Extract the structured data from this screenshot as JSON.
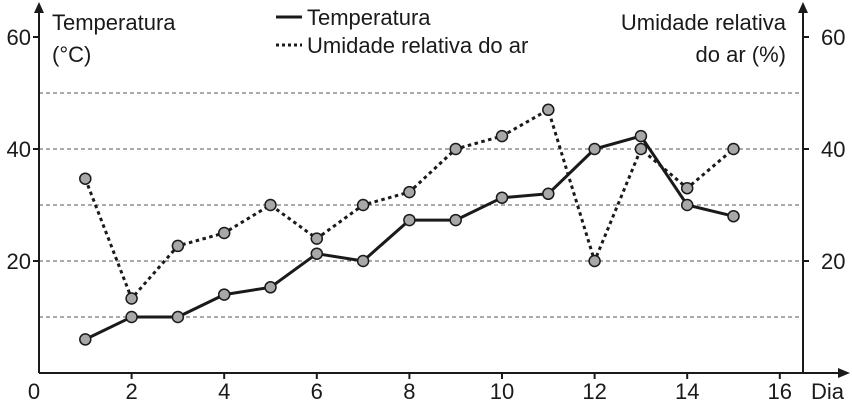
{
  "chart_data": {
    "type": "line",
    "x_label": "Dia",
    "left_axis_title": [
      "Temperatura",
      "(°C)"
    ],
    "right_axis_title": [
      "Umidade relativa",
      "do ar (%)"
    ],
    "xlim": [
      0,
      16
    ],
    "ylim": [
      0,
      60
    ],
    "x_ticks": [
      0,
      2,
      4,
      6,
      8,
      10,
      12,
      14,
      16
    ],
    "y_ticks": [
      20,
      40,
      60
    ],
    "gridlines_y": [
      10,
      20,
      30,
      40,
      50
    ],
    "legend": "top-center",
    "series": [
      {
        "name": "Temperatura",
        "style": "solid",
        "x": [
          1,
          2,
          3,
          4,
          5,
          6,
          7,
          8,
          9,
          10,
          11,
          12,
          13,
          14,
          15
        ],
        "values": [
          6,
          10,
          10,
          14,
          15.3,
          21.3,
          20,
          27.3,
          27.3,
          31.3,
          32,
          40,
          42.3,
          30,
          28
        ]
      },
      {
        "name": "Umidade relativa do ar",
        "style": "dotted",
        "x": [
          1,
          2,
          3,
          4,
          5,
          6,
          7,
          8,
          9,
          10,
          11,
          12,
          13,
          14,
          15
        ],
        "values": [
          34.7,
          13.3,
          22.7,
          25,
          30,
          24,
          30,
          32.3,
          40,
          42.3,
          47,
          20,
          40,
          33,
          40
        ]
      }
    ],
    "colors": {
      "line": "#1a1a1a",
      "marker_fill": "#a8a8a8",
      "grid": "#555555"
    }
  }
}
